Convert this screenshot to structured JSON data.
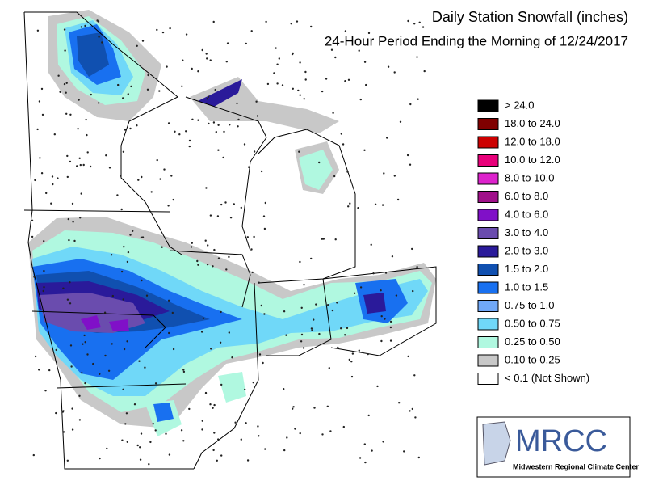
{
  "header": {
    "title": "Daily Station Snowfall (inches)",
    "subtitle": "24-Hour Period Ending the Morning of 12/24/2017"
  },
  "legend": {
    "items": [
      {
        "label": "> 24.0",
        "color": "#000000"
      },
      {
        "label": "18.0 to 24.0",
        "color": "#800000"
      },
      {
        "label": "12.0 to 18.0",
        "color": "#cc0000"
      },
      {
        "label": "10.0 to 12.0",
        "color": "#e8007a"
      },
      {
        "label": "8.0 to 10.0",
        "color": "#dd22cc"
      },
      {
        "label": "6.0 to 8.0",
        "color": "#a0108a"
      },
      {
        "label": "4.0 to 6.0",
        "color": "#8010c8"
      },
      {
        "label": "3.0 to 4.0",
        "color": "#6a4cae"
      },
      {
        "label": "2.0 to 3.0",
        "color": "#2a1a9a"
      },
      {
        "label": "1.5 to 2.0",
        "color": "#1050b0"
      },
      {
        "label": "1.0 to 1.5",
        "color": "#1870f0"
      },
      {
        "label": "0.75 to 1.0",
        "color": "#70a8f8"
      },
      {
        "label": "0.50 to 0.75",
        "color": "#70d8f8"
      },
      {
        "label": "0.25 to 0.50",
        "color": "#b0f8e0"
      },
      {
        "label": "0.10 to 0.25",
        "color": "#c8c8c8"
      },
      {
        "label": "< 0.1 (Not Shown)",
        "color": "#ffffff"
      }
    ]
  },
  "logo": {
    "name": "MRCC",
    "full_name": "Midwestern Regional Climate Center"
  }
}
